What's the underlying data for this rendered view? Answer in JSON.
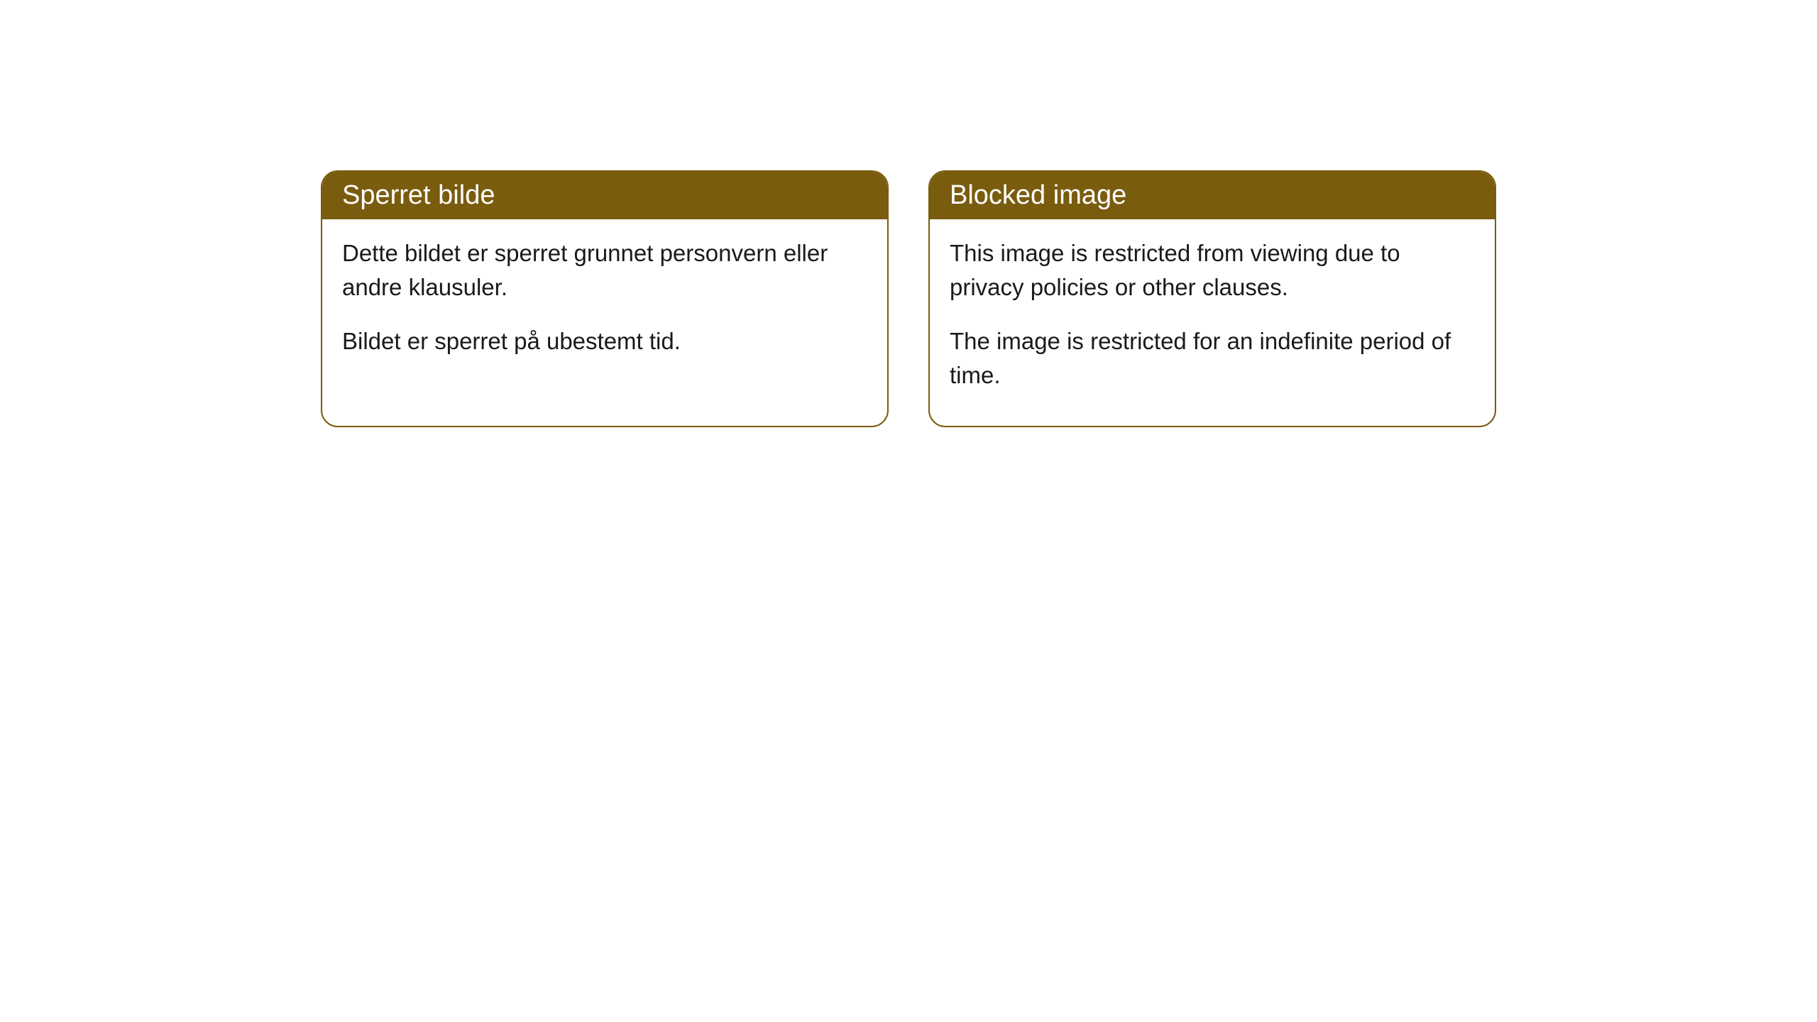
{
  "cards": [
    {
      "title": "Sperret bilde",
      "paragraph1": "Dette bildet er sperret grunnet personvern eller andre klausuler.",
      "paragraph2": "Bildet er sperret på ubestemt tid."
    },
    {
      "title": "Blocked image",
      "paragraph1": "This image is restricted from viewing due to privacy policies or other clauses.",
      "paragraph2": "The image is restricted for an indefinite period of time."
    }
  ],
  "styling": {
    "header_background_color": "#7a5c0f",
    "header_text_color": "#ffffff",
    "card_border_color": "#7a5c0f",
    "card_background_color": "#ffffff",
    "body_text_color": "#1a1a1a",
    "page_background_color": "#ffffff",
    "header_fontsize": 38,
    "body_fontsize": 33,
    "border_radius": 24,
    "border_width": 2
  }
}
